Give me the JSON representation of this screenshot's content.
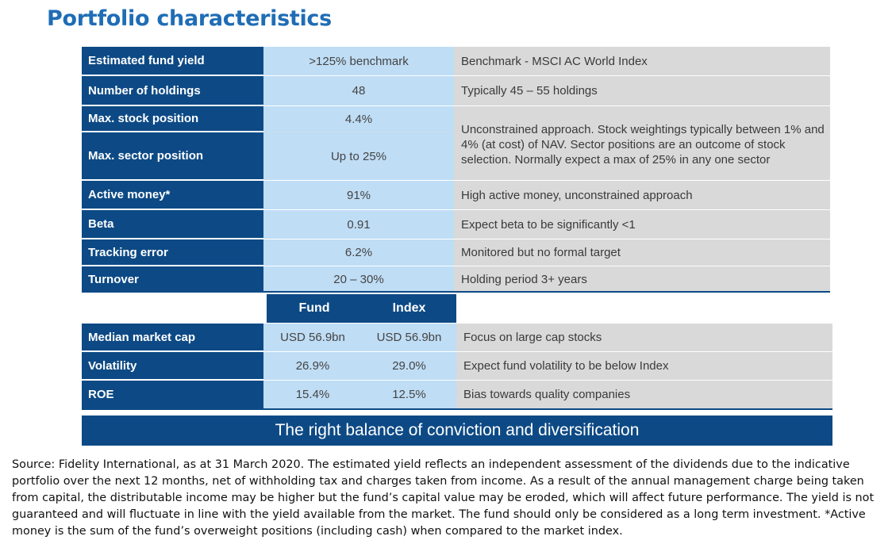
{
  "title": "Portfolio characteristics",
  "table1": {
    "rows": [
      {
        "label": "Estimated fund yield",
        "value": ">125% benchmark",
        "comment": "Benchmark - MSCI AC World Index"
      },
      {
        "label": "Number of holdings",
        "value": "48",
        "comment": "Typically 45 – 55 holdings"
      },
      {
        "label": "Max. stock position",
        "value": "4.4%"
      },
      {
        "label": "Max. sector position",
        "value": "Up to 25%"
      },
      {
        "label": "Active money*",
        "value": "91%",
        "comment": "High active money, unconstrained approach"
      },
      {
        "label": "Beta",
        "value": "0.91",
        "comment": "Expect beta to be significantly <1"
      },
      {
        "label": "Tracking error",
        "value": "6.2%",
        "comment": "Monitored but no formal target"
      },
      {
        "label": "Turnover",
        "value": "20 – 30%",
        "comment": "Holding period 3+ years"
      }
    ],
    "merged_comment": "Unconstrained approach. Stock weightings typically  between 1% and 4% (at cost) of NAV. Sector positions are an outcome of stock selection. Normally expect a max of 25% in any one sector"
  },
  "table2": {
    "headers": [
      "Fund",
      "Index"
    ],
    "rows": [
      {
        "label": "Median market cap",
        "fund": "USD 56.9bn",
        "index": "USD 56.9bn",
        "comment": "Focus on large cap stocks"
      },
      {
        "label": "Volatility",
        "fund": "26.9%",
        "index": "29.0%",
        "comment": "Expect fund volatility to be below Index"
      },
      {
        "label": "ROE",
        "fund": "15.4%",
        "index": "12.5%",
        "comment": "Bias towards quality companies"
      }
    ]
  },
  "banner": "The right balance of conviction and diversification",
  "footnote": "Source: Fidelity International, as at 31 March 2020. The estimated yield reflects an independent assessment of the dividends due to the indicative portfolio over the next 12 months, net of withholding tax and charges taken from income. As a result of the annual management charge being taken from capital, the distributable income may be higher but the fund’s capital value may be eroded, which will affect future performance. The yield is not guaranteed and will fluctuate in line with the yield available from the market. The fund should only be considered as a long term investment. *Active money is the sum of the fund’s overweight positions (including cash) when compared to the market index.",
  "colors": {
    "navy": "#0d4a85",
    "light_blue": "#bfddf5",
    "grey": "#d9d9d9",
    "title_blue": "#1f6db5"
  }
}
